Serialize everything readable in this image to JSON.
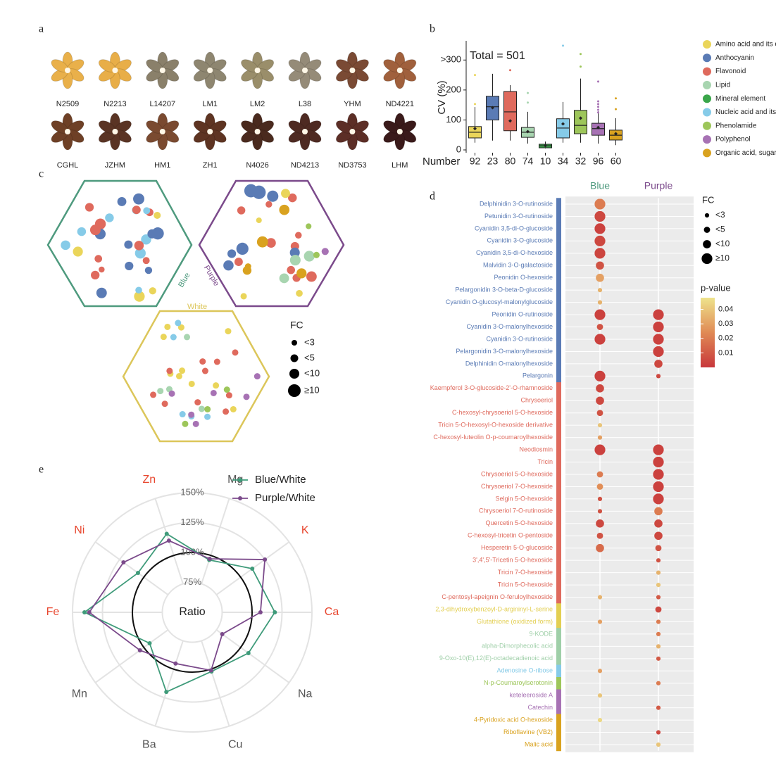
{
  "panel_labels": [
    "a",
    "b",
    "c",
    "d",
    "e"
  ],
  "panel_a": {
    "labels": [
      "N2509",
      "N2213",
      "L14207",
      "LM1",
      "LM2",
      "L38",
      "YHM",
      "ND4221",
      "CGHL",
      "JZHM",
      "HM1",
      "ZH1",
      "N4026",
      "ND4213",
      "ND3753",
      "LHM"
    ]
  },
  "panel_c": {
    "sets": [
      "Blue",
      "Purple",
      "White"
    ],
    "legend_title": "FC",
    "legend_labels": [
      "<3",
      "<5",
      "<10",
      "≥10"
    ]
  },
  "chart_data": [
    {
      "type": "box",
      "ylabel": "CV (%)",
      "xlabel": "Number",
      "annotation": "Total = 501",
      "categories": [
        "92",
        "23",
        "80",
        "74",
        "10",
        "34",
        "32",
        "96",
        "60"
      ],
      "ylim": [
        0,
        350
      ],
      "yticks": [
        0,
        100,
        200,
        {
          "value": 300,
          "label": ">300"
        }
      ],
      "series": [
        {
          "name": "Amino acid and its derivative",
          "color": "#ead55a",
          "q1": 40,
          "median": 59,
          "q3": 78,
          "whisker_low": 24,
          "whisker_high": 143,
          "mean": 71,
          "outliers": [
            250,
            153
          ]
        },
        {
          "name": "Anthocyanin",
          "color": "#5a7bb5",
          "q1": 100,
          "median": 144,
          "q3": 179,
          "whisker_low": 31,
          "whisker_high": 254,
          "mean": 141,
          "outliers": []
        },
        {
          "name": "Flavonoid",
          "color": "#df6a5d",
          "q1": 64,
          "median": 127,
          "q3": 195,
          "whisker_low": 31,
          "whisker_high": 216,
          "mean": 97,
          "outliers": [
            266
          ]
        },
        {
          "name": "Lipid",
          "color": "#a8d5b0",
          "q1": 42,
          "median": 59,
          "q3": 75,
          "whisker_low": 21,
          "whisker_high": 127,
          "mean": 61,
          "outliers": [
            190,
            158
          ]
        },
        {
          "name": "Mineral element",
          "color": "#3aa64a",
          "q1": 7,
          "median": 14,
          "q3": 19,
          "whisker_low": 5,
          "whisker_high": 28,
          "mean": 14,
          "outliers": []
        },
        {
          "name": "Nucleic acid and its derivative",
          "color": "#86cbe8",
          "q1": 40,
          "median": 73,
          "q3": 104,
          "whisker_low": 24,
          "whisker_high": 160,
          "mean": 87,
          "outliers": [
            348
          ]
        },
        {
          "name": "Phenolamide",
          "color": "#9dc65a",
          "q1": 54,
          "median": 82,
          "q3": 132,
          "whisker_low": 24,
          "whisker_high": 238,
          "mean": 106,
          "outliers": [
            320,
            278
          ]
        },
        {
          "name": "Polyphenol",
          "color": "#a772b4",
          "q1": 49,
          "median": 71,
          "q3": 89,
          "whisker_low": 21,
          "whisker_high": 129,
          "mean": 75,
          "outliers": [
            228,
            162,
            153,
            144,
            134,
            125
          ]
        },
        {
          "name": "Organic acid, sugar, and vitamin",
          "color": "#d9a21f",
          "q1": 33,
          "median": 49,
          "q3": 66,
          "whisker_low": 16,
          "whisker_high": 106,
          "mean": 54,
          "outliers": [
            172,
            136
          ]
        }
      ]
    },
    {
      "type": "dotmatrix",
      "rows": [
        "Delphinidin 3-O-rutinoside",
        "Petunidin 3-O-rutinoside",
        "Cyanidin 3,5-di-O-glucoside",
        "Cyanidin 3-O-glucoside",
        "Cyanidin 3,5-di-O-hexoside",
        "Malvidin 3-O-galactoside",
        "Peonidin O-hexoside",
        "Pelargonidin 3-O-beta-D-glucoside",
        "Cyanidin O-glucosyl-malonylglucoside",
        "Peonidin O-rutinoside",
        "Cyanidin 3-O-malonylhexoside",
        "Cyanidin 3-O-rutinoside",
        "Pelargonidin 3-O-malonylhexoside",
        "Delphinidin O-malonylhexoside",
        "Pelargonin",
        "Kaempferol 3-O-glucoside-2'-O-rhamnoside",
        "Chrysoeriol",
        "C-hexosyl-chrysoeriol 5-O-hexoside",
        "Tricin 5-O-hexosyl-O-hexoside derivative",
        "C-hexosyl-luteolin O-p-coumaroylhexoside",
        "Neodiosmin",
        "Tricin",
        "Chrysoeriol 5-O-hexoside",
        "Chrysoeriol 7-O-hexoside",
        "Selgin 5-O-hexoside",
        "Chrysoeriol 7-O-rutinoside",
        "Quercetin 5-O-hexoside",
        "C-hexosyl-tricetin O-pentoside",
        "Hesperetin 5-O-glucoside",
        "3',4',5'-Tricetin 5-O-hexoside",
        "Tricin 7-O-hexoside",
        "Tricin 5-O-hexoside",
        "C-pentosyl-apeignin O-feruloylhexoside",
        "2,3-dihydroxybenzoyl-D-argininyl-L-serine",
        "Glutathione (oxidized form)",
        "9-KODE",
        "alpha-Dimorphecolic acid",
        "9-Oxo-10(E),12(E)-octadecadienoic acid",
        "Adenosine O-ribose",
        "N-p-Coumaroylserotonin",
        "keteleeroside A",
        "Catechin",
        "4-Pyridoxic acid O-hexoside",
        "Riboflavine (VB2)",
        "Malic acid"
      ],
      "row_colors": [
        "#5a7bb5",
        "#5a7bb5",
        "#5a7bb5",
        "#5a7bb5",
        "#5a7bb5",
        "#5a7bb5",
        "#5a7bb5",
        "#5a7bb5",
        "#5a7bb5",
        "#5a7bb5",
        "#5a7bb5",
        "#5a7bb5",
        "#5a7bb5",
        "#5a7bb5",
        "#5a7bb5",
        "#df6a5d",
        "#df6a5d",
        "#df6a5d",
        "#df6a5d",
        "#df6a5d",
        "#df6a5d",
        "#df6a5d",
        "#df6a5d",
        "#df6a5d",
        "#df6a5d",
        "#df6a5d",
        "#df6a5d",
        "#df6a5d",
        "#df6a5d",
        "#df6a5d",
        "#df6a5d",
        "#df6a5d",
        "#df6a5d",
        "#e3cf52",
        "#e3cf52",
        "#9fcfa8",
        "#9fcfa8",
        "#9fcfa8",
        "#86cbe8",
        "#9dc65a",
        "#a772b4",
        "#a772b4",
        "#d9a21f",
        "#d9a21f",
        "#d9a21f"
      ],
      "series": [
        {
          "name": "Blue",
          "color": "#4e9a7e",
          "fc": [
            12,
            12,
            12,
            12,
            12,
            7,
            7,
            2,
            2,
            12,
            4,
            12,
            null,
            null,
            12,
            7,
            7,
            4,
            2,
            2,
            12,
            null,
            4,
            4,
            2,
            2,
            7,
            4,
            7,
            null,
            null,
            null,
            2,
            null,
            2,
            null,
            null,
            null,
            2,
            null,
            2,
            null,
            2,
            null,
            null
          ],
          "p": [
            0.02,
            0.005,
            0.003,
            0.005,
            0.004,
            0.008,
            0.03,
            0.035,
            0.035,
            0.003,
            0.008,
            0.003,
            null,
            null,
            0.003,
            0.005,
            0.005,
            0.008,
            0.04,
            0.03,
            0.003,
            null,
            0.02,
            0.025,
            0.008,
            0.008,
            0.005,
            0.008,
            0.015,
            null,
            null,
            null,
            0.035,
            null,
            0.03,
            null,
            null,
            null,
            0.03,
            null,
            0.04,
            null,
            0.045,
            null,
            null
          ]
        },
        {
          "name": "Purple",
          "color": "#7b4a8b",
          "fc": [
            null,
            null,
            null,
            null,
            null,
            null,
            null,
            null,
            null,
            12,
            12,
            12,
            12,
            7,
            2,
            null,
            null,
            null,
            null,
            null,
            12,
            12,
            12,
            12,
            12,
            7,
            7,
            7,
            4,
            2,
            2,
            2,
            2,
            4,
            2,
            2,
            2,
            2,
            null,
            2,
            null,
            2,
            null,
            2,
            2
          ],
          "p": [
            null,
            null,
            null,
            null,
            null,
            null,
            null,
            null,
            null,
            0.003,
            0.003,
            0.003,
            0.003,
            0.005,
            0.005,
            null,
            null,
            null,
            null,
            null,
            0.003,
            0.003,
            0.003,
            0.003,
            0.003,
            0.02,
            0.005,
            0.005,
            0.008,
            0.008,
            0.035,
            0.04,
            0.01,
            0.005,
            0.02,
            0.02,
            0.035,
            0.01,
            null,
            0.02,
            null,
            0.01,
            null,
            0.005,
            0.04
          ]
        }
      ],
      "size_legend_title": "FC",
      "size_legend": [
        {
          "value": 2,
          "label": "<3"
        },
        {
          "value": 4,
          "label": "<5"
        },
        {
          "value": 7,
          "label": "<10"
        },
        {
          "value": 12,
          "label": "≥10"
        }
      ],
      "color_legend_title": "p-value",
      "colormap": [
        "#c8373b",
        "#e08a55",
        "#eee38c"
      ],
      "clim": [
        0,
        0.048
      ],
      "cticks": [
        0.01,
        0.02,
        0.03,
        0.04
      ]
    },
    {
      "type": "radar",
      "center_label": "Ratio",
      "categories": [
        "Mg",
        "K",
        "Ca",
        "Na",
        "Cu",
        "Ba",
        "Mn",
        "Fe",
        "Ni",
        "Zn"
      ],
      "category_colors": [
        "#555555",
        "#e8462e",
        "#e8462e",
        "#555555",
        "#555555",
        "#555555",
        "#555555",
        "#e8462e",
        "#e8462e",
        "#e8462e"
      ],
      "rlim": [
        50,
        150
      ],
      "rticks": [
        {
          "value": 75,
          "label": "75%"
        },
        {
          "value": 100,
          "label": "100%"
        },
        {
          "value": 125,
          "label": "125%"
        },
        {
          "value": 150,
          "label": "150%"
        }
      ],
      "reference_circle": 100,
      "series": [
        {
          "name": "Blue/White",
          "color": "#3f9b7a",
          "values": [
            96,
            112,
            119,
            108,
            102,
            120,
            94,
            140,
            106,
            119
          ]
        },
        {
          "name": "Purple/White",
          "color": "#7b4a8b",
          "values": [
            97,
            125,
            107,
            81,
            101,
            95,
            104,
            136,
            121,
            113
          ]
        }
      ]
    }
  ]
}
